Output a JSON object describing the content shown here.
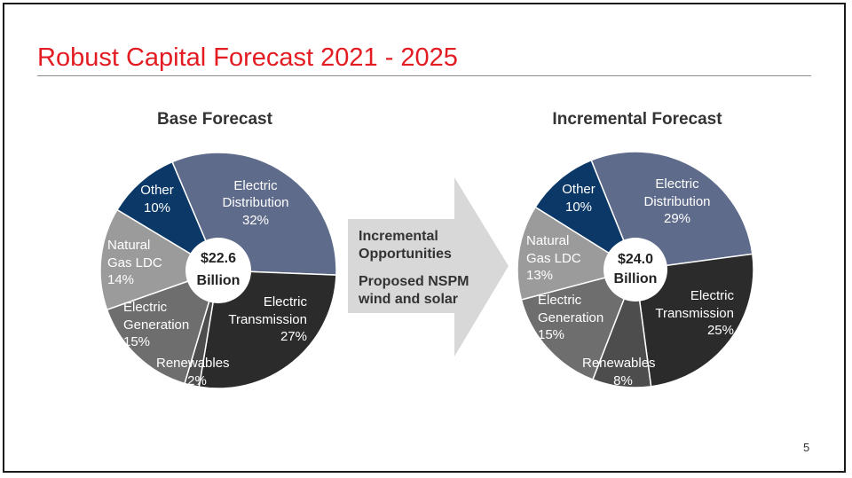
{
  "slide": {
    "title": "Robust Capital Forecast 2021 - 2025",
    "page_number": "5",
    "arrow": {
      "line1": "Incremental",
      "line2": "Opportunities",
      "line3": "Proposed NSPM",
      "line4": "wind and solar"
    }
  },
  "colors": {
    "title_red": "#e31b23",
    "electric_distribution": "#5e6b8b",
    "electric_transmission": "#2b2b2b",
    "renewables": "#4d4d4d",
    "electric_generation": "#6e6e6e",
    "natural_gas_ldc": "#9b9b9b",
    "other": "#0b3866",
    "arrow": "#d8d8d8"
  },
  "chart_data": [
    {
      "type": "pie",
      "title": "Base Forecast",
      "center_label": [
        "$22.6",
        "Billion"
      ],
      "slices": [
        {
          "label": [
            "Electric",
            "Distribution"
          ],
          "pct_label": "32%",
          "value": 32,
          "color_key": "electric_distribution"
        },
        {
          "label": [
            "Electric",
            "Transmission"
          ],
          "pct_label": "27%",
          "value": 27,
          "color_key": "electric_transmission"
        },
        {
          "label": [
            "Renewables"
          ],
          "pct_label": "2%",
          "value": 2,
          "color_key": "renewables"
        },
        {
          "label": [
            "Electric",
            "Generation"
          ],
          "pct_label": "15%",
          "value": 15,
          "color_key": "electric_generation"
        },
        {
          "label": [
            "Natural",
            "Gas LDC"
          ],
          "pct_label": "14%",
          "value": 14,
          "color_key": "natural_gas_ldc"
        },
        {
          "label": [
            "Other"
          ],
          "pct_label": "10%",
          "value": 10,
          "color_key": "other"
        }
      ]
    },
    {
      "type": "pie",
      "title": "Incremental Forecast",
      "center_label": [
        "$24.0",
        "Billion"
      ],
      "slices": [
        {
          "label": [
            "Electric",
            "Distribution"
          ],
          "pct_label": "29%",
          "value": 29,
          "color_key": "electric_distribution"
        },
        {
          "label": [
            "Electric",
            "Transmission"
          ],
          "pct_label": "25%",
          "value": 25,
          "color_key": "electric_transmission"
        },
        {
          "label": [
            "Renewables"
          ],
          "pct_label": "8%",
          "value": 8,
          "color_key": "renewables"
        },
        {
          "label": [
            "Electric",
            "Generation"
          ],
          "pct_label": "15%",
          "value": 15,
          "color_key": "electric_generation"
        },
        {
          "label": [
            "Natural",
            "Gas LDC"
          ],
          "pct_label": "13%",
          "value": 13,
          "color_key": "natural_gas_ldc"
        },
        {
          "label": [
            "Other"
          ],
          "pct_label": "10%",
          "value": 10,
          "color_key": "other"
        }
      ]
    }
  ]
}
